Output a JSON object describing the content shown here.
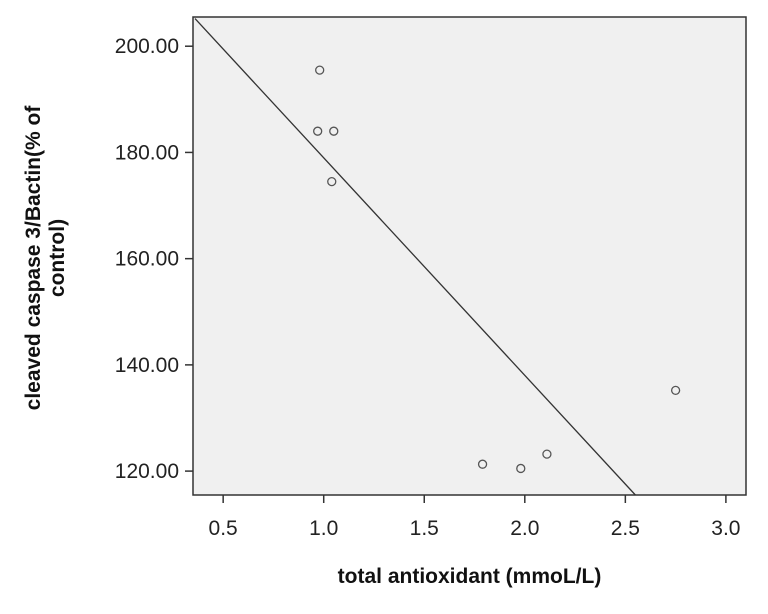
{
  "chart_data": {
    "type": "scatter",
    "xlabel": "total antioxidant (mmoL/L)",
    "ylabel": "cleaved caspase 3/Bactin(% of control)",
    "xlim": [
      0.35,
      3.1
    ],
    "ylim": [
      115.5,
      205.5
    ],
    "x_ticks": [
      0.5,
      1.0,
      1.5,
      2.0,
      2.5,
      3.0
    ],
    "x_tick_labels": [
      "0.5",
      "1.0",
      "1.5",
      "2.0",
      "2.5",
      "3.0"
    ],
    "y_ticks": [
      120,
      140,
      160,
      180,
      200
    ],
    "y_tick_labels": [
      "120.00",
      "140.00",
      "160.00",
      "180.00",
      "200.00"
    ],
    "grid": false,
    "points": [
      {
        "x": 0.98,
        "y": 195.5
      },
      {
        "x": 0.97,
        "y": 184.0
      },
      {
        "x": 1.05,
        "y": 184.0
      },
      {
        "x": 1.04,
        "y": 174.5
      },
      {
        "x": 1.79,
        "y": 121.3
      },
      {
        "x": 1.98,
        "y": 120.5
      },
      {
        "x": 2.11,
        "y": 123.2
      },
      {
        "x": 2.75,
        "y": 135.2
      }
    ],
    "fit_line": {
      "x": [
        0.36,
        2.55
      ],
      "y": [
        205.2,
        115.5
      ]
    }
  },
  "colors": {
    "plot_background": "#f0f0f0",
    "frame": "#333333",
    "point_stroke": "#555555",
    "fit_line": "#333333"
  }
}
